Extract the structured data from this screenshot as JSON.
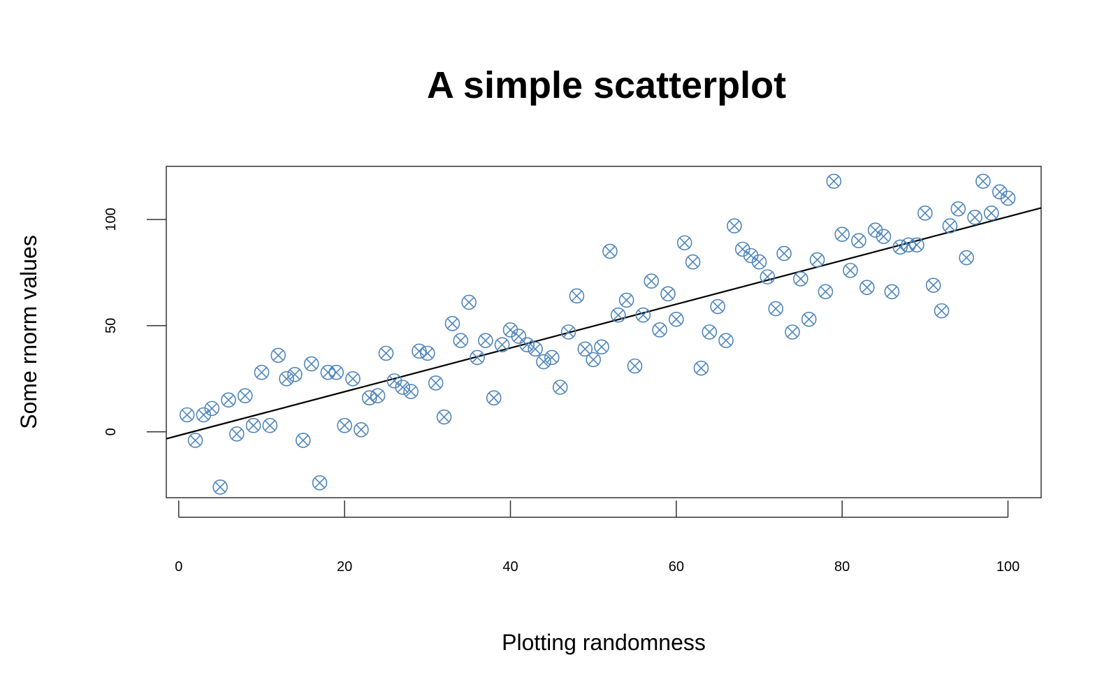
{
  "chart_data": {
    "type": "scatter",
    "title": "A simple scatterplot",
    "xlabel": "Plotting randomness",
    "ylabel": "Some rnorm values",
    "xlim": [
      -1.5,
      104
    ],
    "ylim": [
      -31,
      125
    ],
    "x_ticks": [
      0,
      20,
      40,
      60,
      80,
      100
    ],
    "x_tick_labels": [
      "0",
      "20",
      "40",
      "60",
      "80",
      "100"
    ],
    "y_ticks": [
      0,
      50,
      100
    ],
    "y_tick_labels": [
      "0",
      "50",
      "100"
    ],
    "grid": false,
    "legend": "none",
    "marker": "circle-x",
    "marker_color": "#4f86bc",
    "fit_line": {
      "intercept": -1.7,
      "slope": 1.03,
      "color": "#000000"
    },
    "series": [
      {
        "x": [
          1,
          2,
          3,
          4,
          5,
          6,
          7,
          8,
          9,
          10,
          11,
          12,
          13,
          14,
          15,
          16,
          17,
          18,
          19,
          20,
          21,
          22,
          23,
          24,
          25,
          26,
          27,
          28,
          29,
          30,
          31,
          32,
          33,
          34,
          35,
          36,
          37,
          38,
          39,
          40,
          41,
          42,
          43,
          44,
          45,
          46,
          47,
          48,
          49,
          50,
          51,
          52,
          53,
          54,
          55,
          56,
          57,
          58,
          59,
          60,
          61,
          62,
          63,
          64,
          65,
          66,
          67,
          68,
          69,
          70,
          71,
          72,
          73,
          74,
          75,
          76,
          77,
          78,
          79,
          80,
          81,
          82,
          83,
          84,
          85,
          86,
          87,
          88,
          89,
          90,
          91,
          92,
          93,
          94,
          95,
          96,
          97,
          98,
          99,
          100
        ],
        "y": [
          8,
          -4,
          8,
          11,
          -26,
          15,
          -1,
          17,
          3,
          28,
          3,
          36,
          25,
          27,
          -4,
          32,
          -24,
          28,
          28,
          3,
          25,
          1,
          16,
          17,
          37,
          24,
          21,
          19,
          38,
          37,
          23,
          7,
          51,
          43,
          61,
          35,
          43,
          16,
          41,
          48,
          45,
          41,
          39,
          33,
          35,
          21,
          47,
          64,
          39,
          34,
          40,
          85,
          55,
          62,
          31,
          55,
          71,
          48,
          65,
          53,
          89,
          80,
          30,
          47,
          59,
          43,
          97,
          86,
          83,
          80,
          73,
          58,
          84,
          47,
          72,
          53,
          81,
          66,
          118,
          93,
          76,
          90,
          68,
          95,
          92,
          66,
          87,
          88,
          88,
          103,
          69,
          57,
          97,
          105,
          82,
          101,
          118,
          103,
          113,
          110
        ]
      }
    ]
  }
}
